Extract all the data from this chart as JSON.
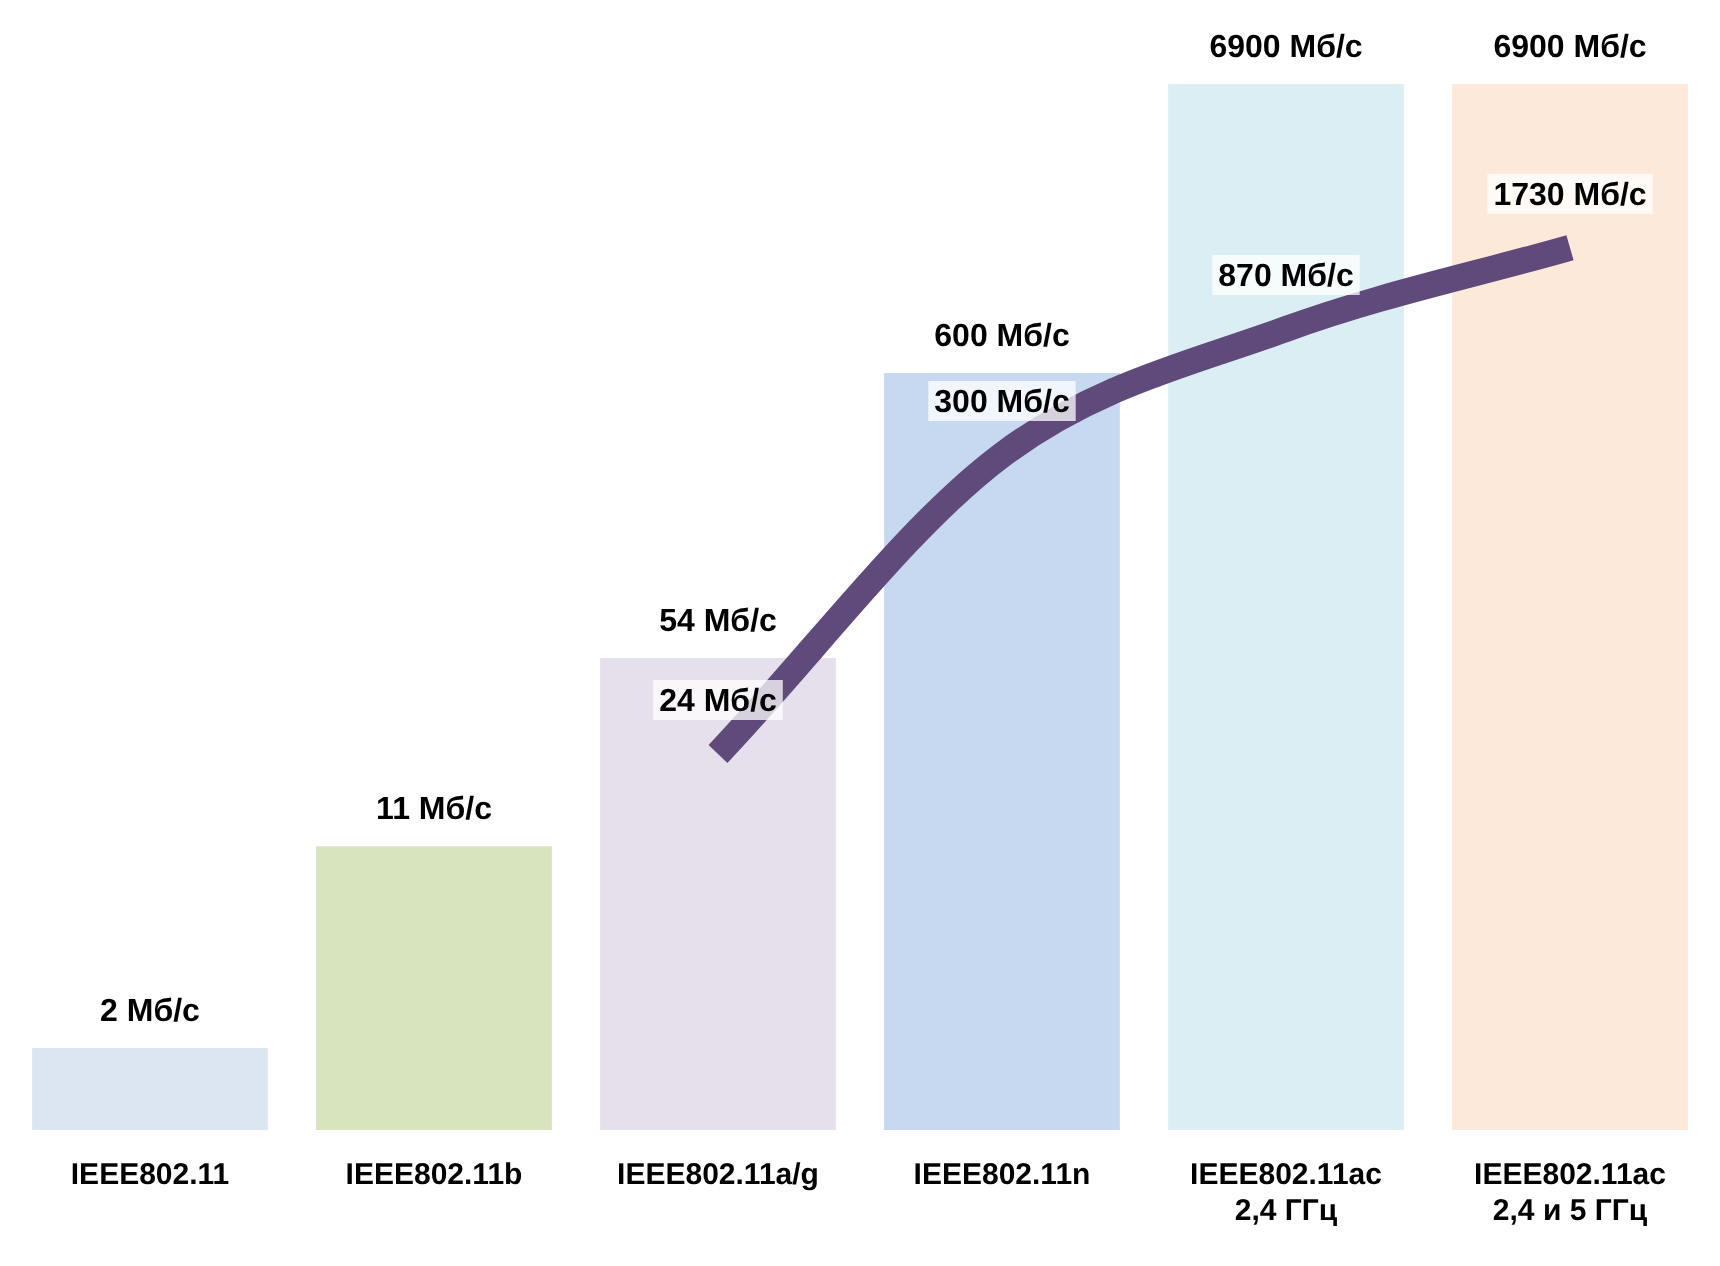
{
  "chart_data": {
    "type": "bar",
    "log": "y",
    "ylim": [
      1,
      6900
    ],
    "tick_labels": "x",
    "grid": false,
    "legend": false,
    "marker": "none",
    "line_style": "solid",
    "categories": [
      "IEEE802.11",
      "IEEE802.11b",
      "IEEE802.11a/g",
      "IEEE802.11n",
      "IEEE802.11ac\n2,4 ГГц",
      "IEEE802.11ac\n2,4 и 5 ГГц"
    ],
    "series": [
      {
        "type": "bar",
        "colors": [
          "#dce6f2",
          "#d7e4bd",
          "#e5e0ec",
          "#c6d9f1",
          "#dbeef4",
          "#fde9d9"
        ],
        "values": [
          2,
          11,
          54,
          600,
          6900,
          6900
        ],
        "value_labels": [
          "2 Мб/с",
          "11 Мб/с",
          "54 Мб/с",
          "600 Мб/с",
          "6900 Мб/с",
          "6900 Мб/с"
        ]
      },
      {
        "type": "line",
        "color": "#604a7b",
        "values": [
          null,
          null,
          24,
          300,
          870,
          1730
        ],
        "value_labels": [
          null,
          null,
          "24 Мб/с",
          "300 Мб/с",
          "870 Мб/с",
          "1730 Мб/с"
        ]
      }
    ]
  }
}
